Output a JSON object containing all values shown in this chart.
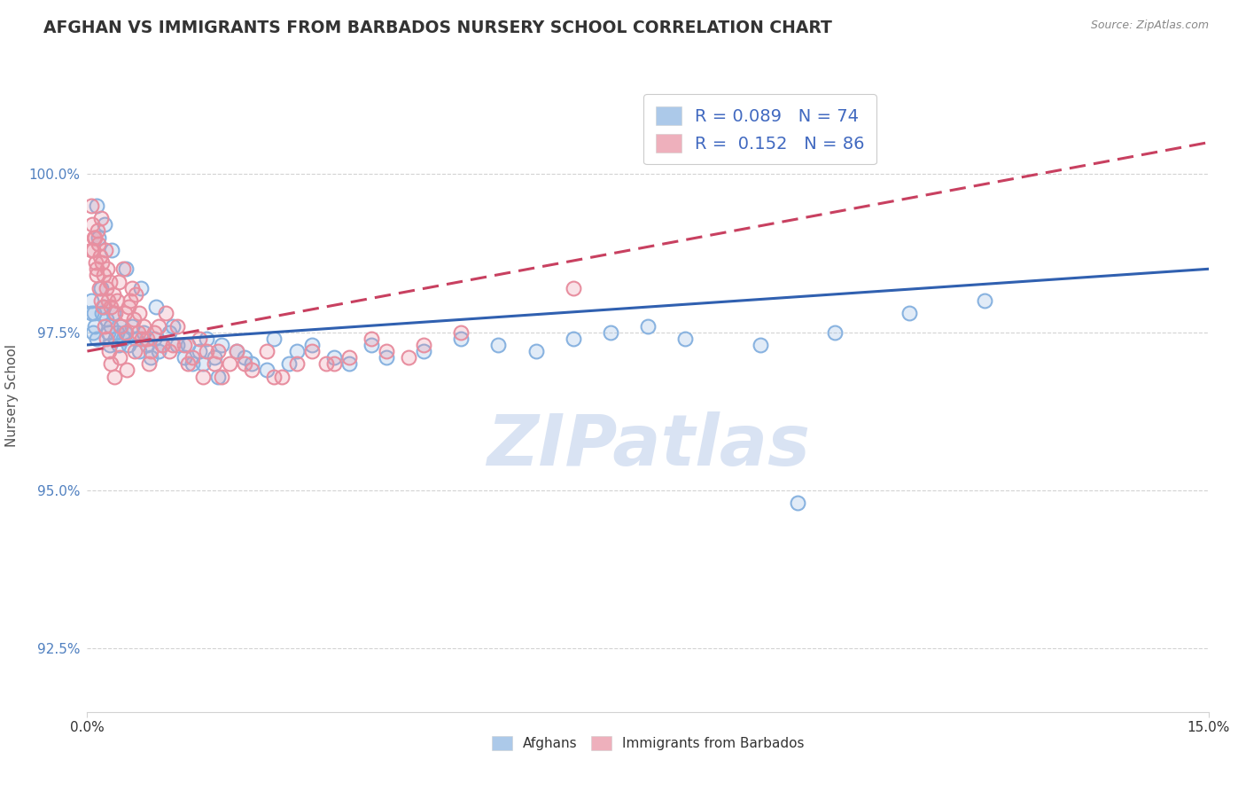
{
  "title": "AFGHAN VS IMMIGRANTS FROM BARBADOS NURSERY SCHOOL CORRELATION CHART",
  "source_text": "Source: ZipAtlas.com",
  "ylabel": "Nursery School",
  "xlim": [
    0.0,
    15.0
  ],
  "ylim": [
    91.5,
    101.5
  ],
  "yticks": [
    92.5,
    95.0,
    97.5,
    100.0
  ],
  "xticks": [
    0.0,
    15.0
  ],
  "xtick_labels": [
    "0.0%",
    "15.0%"
  ],
  "ytick_labels": [
    "92.5%",
    "95.0%",
    "97.5%",
    "100.0%"
  ],
  "blue_color": "#89B3E0",
  "pink_color": "#E88FA0",
  "blue_line_color": "#3060B0",
  "pink_line_color": "#C84060",
  "blue_R": 0.089,
  "blue_N": 74,
  "pink_R": 0.152,
  "pink_N": 86,
  "watermark": "ZIPatlas",
  "blue_scatter_x": [
    0.05,
    0.08,
    0.1,
    0.12,
    0.15,
    0.18,
    0.2,
    0.22,
    0.25,
    0.28,
    0.3,
    0.32,
    0.35,
    0.38,
    0.4,
    0.42,
    0.45,
    0.48,
    0.5,
    0.55,
    0.6,
    0.65,
    0.7,
    0.75,
    0.8,
    0.85,
    0.9,
    0.95,
    1.0,
    1.1,
    1.2,
    1.3,
    1.4,
    1.5,
    1.6,
    1.7,
    1.8,
    2.0,
    2.2,
    2.5,
    2.8,
    3.0,
    3.3,
    3.5,
    3.8,
    4.0,
    4.5,
    5.0,
    5.5,
    6.0,
    6.5,
    7.0,
    7.5,
    8.0,
    9.0,
    10.0,
    11.0,
    12.0,
    9.5,
    0.06,
    0.09,
    0.13,
    0.23,
    0.33,
    0.52,
    0.72,
    0.92,
    1.15,
    1.35,
    1.55,
    1.75,
    2.1,
    2.4,
    2.7
  ],
  "blue_scatter_y": [
    97.8,
    97.5,
    97.6,
    97.4,
    99.0,
    98.2,
    97.8,
    97.9,
    97.7,
    97.5,
    97.3,
    97.6,
    97.8,
    97.4,
    97.5,
    97.3,
    97.6,
    97.4,
    97.5,
    97.3,
    97.6,
    97.4,
    97.2,
    97.5,
    97.3,
    97.1,
    97.4,
    97.2,
    97.3,
    97.5,
    97.3,
    97.1,
    97.0,
    97.2,
    97.4,
    97.1,
    97.3,
    97.2,
    97.0,
    97.4,
    97.2,
    97.3,
    97.1,
    97.0,
    97.3,
    97.1,
    97.2,
    97.4,
    97.3,
    97.2,
    97.4,
    97.5,
    97.6,
    97.4,
    97.3,
    97.5,
    97.8,
    98.0,
    94.8,
    98.0,
    97.8,
    99.5,
    99.2,
    98.8,
    98.5,
    98.2,
    97.9,
    97.6,
    97.3,
    97.0,
    96.8,
    97.1,
    96.9,
    97.0
  ],
  "pink_scatter_x": [
    0.05,
    0.07,
    0.08,
    0.1,
    0.12,
    0.14,
    0.15,
    0.17,
    0.18,
    0.2,
    0.22,
    0.24,
    0.25,
    0.27,
    0.28,
    0.3,
    0.32,
    0.35,
    0.38,
    0.4,
    0.42,
    0.45,
    0.48,
    0.5,
    0.52,
    0.55,
    0.58,
    0.6,
    0.62,
    0.65,
    0.68,
    0.7,
    0.75,
    0.8,
    0.85,
    0.9,
    0.95,
    1.0,
    1.05,
    1.1,
    1.2,
    1.3,
    1.4,
    1.5,
    1.6,
    1.7,
    1.8,
    1.9,
    2.0,
    2.2,
    2.4,
    2.6,
    2.8,
    3.0,
    3.2,
    3.5,
    3.8,
    4.0,
    4.5,
    5.0,
    0.06,
    0.09,
    0.11,
    0.13,
    0.16,
    0.19,
    0.21,
    0.23,
    0.26,
    0.29,
    0.31,
    0.36,
    0.43,
    0.53,
    0.63,
    0.73,
    0.83,
    1.15,
    1.35,
    1.55,
    1.75,
    2.1,
    2.5,
    3.3,
    4.3,
    6.5
  ],
  "pink_scatter_y": [
    99.5,
    99.2,
    98.8,
    99.0,
    98.5,
    99.1,
    98.9,
    98.7,
    99.3,
    98.6,
    98.4,
    98.8,
    98.2,
    98.5,
    98.0,
    98.3,
    97.9,
    98.1,
    97.8,
    98.0,
    98.3,
    97.6,
    98.5,
    97.8,
    97.5,
    97.9,
    98.0,
    98.2,
    97.7,
    98.1,
    97.5,
    97.8,
    97.6,
    97.4,
    97.2,
    97.5,
    97.6,
    97.3,
    97.8,
    97.2,
    97.6,
    97.3,
    97.1,
    97.4,
    97.2,
    97.0,
    96.8,
    97.0,
    97.2,
    96.9,
    97.2,
    96.8,
    97.0,
    97.2,
    97.0,
    97.1,
    97.4,
    97.2,
    97.3,
    97.5,
    98.8,
    99.0,
    98.6,
    98.4,
    98.2,
    98.0,
    97.9,
    97.6,
    97.4,
    97.2,
    97.0,
    96.8,
    97.1,
    96.9,
    97.2,
    97.4,
    97.0,
    97.3,
    97.0,
    96.8,
    97.2,
    97.0,
    96.8,
    97.0,
    97.1,
    98.2
  ]
}
